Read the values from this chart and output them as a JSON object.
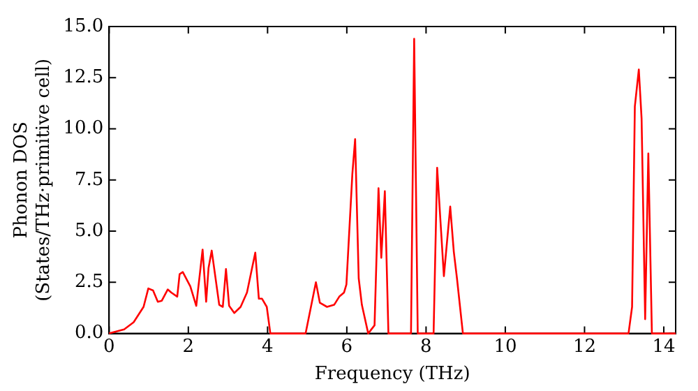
{
  "chart_data": {
    "type": "line",
    "xlabel": "Frequency (THz)",
    "ylabel": "Phonon DOS\n(States/THz·primitive cell)",
    "x": [
      0,
      0.38,
      0.62,
      0.87,
      0.99,
      1.11,
      1.23,
      1.33,
      1.48,
      1.57,
      1.72,
      1.78,
      1.86,
      2.05,
      2.2,
      2.36,
      2.45,
      2.51,
      2.59,
      2.78,
      2.87,
      2.95,
      3.03,
      3.16,
      3.32,
      3.48,
      3.69,
      3.78,
      3.86,
      3.98,
      4.07,
      4.96,
      5.22,
      5.32,
      5.5,
      5.68,
      5.81,
      5.93,
      5.99,
      6.14,
      6.21,
      6.3,
      6.38,
      6.54,
      6.7,
      6.8,
      6.87,
      6.96,
      7.05,
      7.62,
      7.7,
      7.79,
      8.19,
      8.28,
      8.45,
      8.61,
      8.7,
      8.78,
      8.93,
      13.11,
      13.2,
      13.27,
      13.37,
      13.44,
      13.53,
      13.61,
      13.7,
      14.3
    ],
    "series": [
      {
        "color": "#ff0000",
        "values": [
          0,
          0.2,
          0.55,
          1.3,
          2.2,
          2.1,
          1.55,
          1.6,
          2.15,
          2.0,
          1.8,
          2.9,
          3.0,
          2.3,
          1.35,
          4.1,
          1.55,
          3.2,
          4.05,
          1.4,
          1.3,
          3.15,
          1.35,
          1.0,
          1.3,
          2.0,
          3.95,
          1.7,
          1.7,
          1.3,
          0,
          0,
          2.5,
          1.5,
          1.3,
          1.4,
          1.8,
          2.0,
          2.4,
          7.8,
          9.5,
          2.7,
          1.4,
          0,
          0.4,
          7.1,
          3.7,
          6.95,
          0,
          0,
          14.4,
          0,
          0,
          8.1,
          2.8,
          6.2,
          4.0,
          2.7,
          0,
          0,
          1.3,
          11.1,
          12.9,
          10.5,
          0.7,
          8.8,
          0,
          0
        ]
      }
    ],
    "xlim": [
      0,
      14.3
    ],
    "xticks": [
      0,
      2,
      4,
      6,
      8,
      10,
      12,
      14
    ],
    "ylim": [
      0,
      15
    ],
    "yticks": [
      {
        "value": 0,
        "label": "0.0"
      },
      {
        "value": 2.5,
        "label": "2.5"
      },
      {
        "value": 5,
        "label": "5.0"
      },
      {
        "value": 7.5,
        "label": "7.5"
      },
      {
        "value": 10,
        "label": "10.0"
      },
      {
        "value": 12.5,
        "label": "12.5"
      },
      {
        "value": 15,
        "label": "15.0"
      }
    ],
    "grid": false,
    "legend": false,
    "marker": "none",
    "line_style": "solid"
  }
}
